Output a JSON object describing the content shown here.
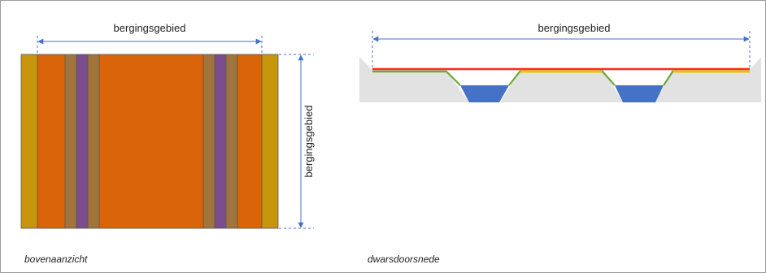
{
  "top_view": {
    "dimension_horizontal_label": "bergingsgebied",
    "dimension_vertical_label": "bergingsgebied",
    "caption": "bovenaanzicht"
  },
  "cross_section": {
    "dimension_label": "bergingsgebied",
    "caption": "dwarsdoorsnede"
  },
  "colors": {
    "outer_strip": "#c8960c",
    "field": "#d9640a",
    "slope": "#a0743a",
    "water": "#7b4c8e",
    "dimension_line": "#4472c4",
    "cross_section_ground": "#e2e2e2",
    "cross_section_surface_red": "#ff2a1a",
    "cross_section_surface_yellow": "#e8c10e",
    "cross_section_slope_green": "#6fa832",
    "cross_section_water": "#4472c4",
    "outline": "#555555"
  }
}
